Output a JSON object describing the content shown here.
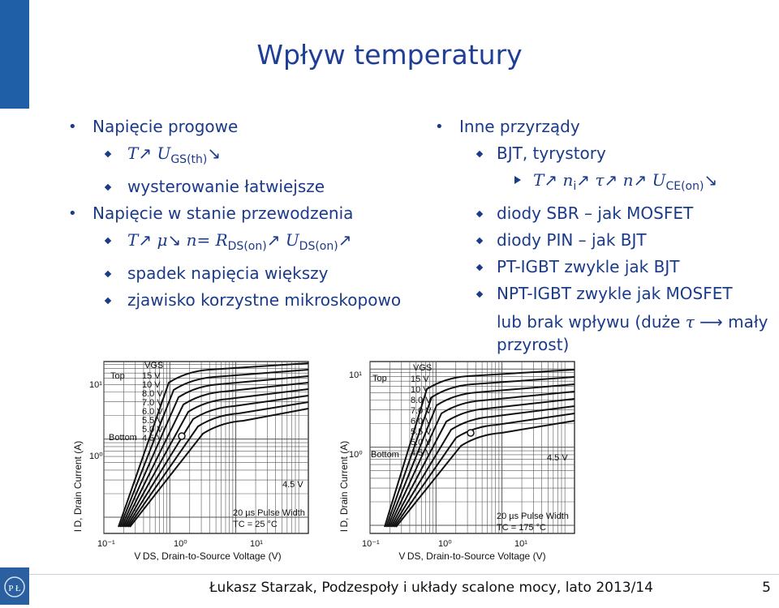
{
  "slide": {
    "title": "Wpływ temperatury",
    "left_items": [
      {
        "level": 1,
        "text": "Napięcie progowe"
      },
      {
        "level": 2,
        "parts": [
          "T",
          "↗",
          "U",
          "GS(th)",
          "↘"
        ]
      },
      {
        "level": 2,
        "text": "wysterowanie łatwiejsze"
      },
      {
        "level": 1,
        "text": "Napięcie w stanie przewodzenia"
      },
      {
        "level": 2,
        "parts": [
          "T",
          "↗",
          "μ",
          "↘",
          "n=",
          "R",
          "DS(on)",
          "↗",
          "U",
          "DS(on)",
          "↗"
        ]
      },
      {
        "level": 2,
        "text": "spadek napięcia większy"
      },
      {
        "level": 2,
        "text": "zjawisko korzystne mikroskopowo"
      }
    ],
    "right_items": {
      "l1": "Inne przyrządy",
      "bjt": "BJT, tyrystory",
      "bjt_sub": [
        "T",
        "↗",
        "n",
        "i",
        "↗",
        "τ",
        "↗",
        "n",
        "↗",
        "U",
        "CE(on)",
        "↘"
      ],
      "sbr": "diody SBR – jak MOSFET",
      "pin": "diody PIN – jak BJT",
      "pt": "PT-IGBT zwykle jak BJT",
      "npt_a": "NPT-IGBT zwykle jak MOSFET",
      "npt_b": "lub brak wpływu (duże",
      "npt_tau": "τ",
      "npt_c": "⟶ mały",
      "npt_d": "przyrost)"
    },
    "footer": "Łukasz Starzak, Podzespoły i układy scalone mocy, lato 2013/14",
    "page_number": "5",
    "logo_icon": "university-logo-icon"
  },
  "chart_data": [
    {
      "type": "line",
      "ylabel": "I D, Drain Current (A)",
      "xlabel": "V DS, Drain-to-Source Voltage (V)",
      "x_ticks": [
        "10⁻¹",
        "10⁰",
        "10¹"
      ],
      "y_ticks": [
        "10¹",
        "10⁰"
      ],
      "legend_title": "VGS",
      "legend_top": "Top",
      "legend_bottom": "Bottom",
      "legend_values": [
        "15 V",
        "10 V",
        "8.0 V",
        "7.0 V",
        "6.0 V",
        "5.5 V",
        "5.0 V",
        "4.5 V"
      ],
      "annotation": "4.5 V",
      "note_1": "20 µs Pulse Width",
      "note_2": "TC = 25 °C",
      "x_scale": "log",
      "y_scale": "log",
      "grid": true
    },
    {
      "type": "line",
      "ylabel": "I D, Drain Current (A)",
      "xlabel": "V DS, Drain-to-Source Voltage (V)",
      "x_ticks": [
        "10⁻¹",
        "10⁰",
        "10¹"
      ],
      "y_ticks": [
        "10¹",
        "10⁰"
      ],
      "legend_title": "VGS",
      "legend_top": "Top",
      "legend_bottom": "Bottom",
      "legend_values": [
        "15 V",
        "10 V",
        "8.0 V",
        "7.0 V",
        "6.0 V",
        "5.5 V",
        "5.0 V",
        "4.5 V"
      ],
      "annotation": "4.5 V",
      "note_1": "20 µs Pulse Width",
      "note_2": "TC = 175 °C",
      "x_scale": "log",
      "y_scale": "log",
      "grid": true
    }
  ]
}
